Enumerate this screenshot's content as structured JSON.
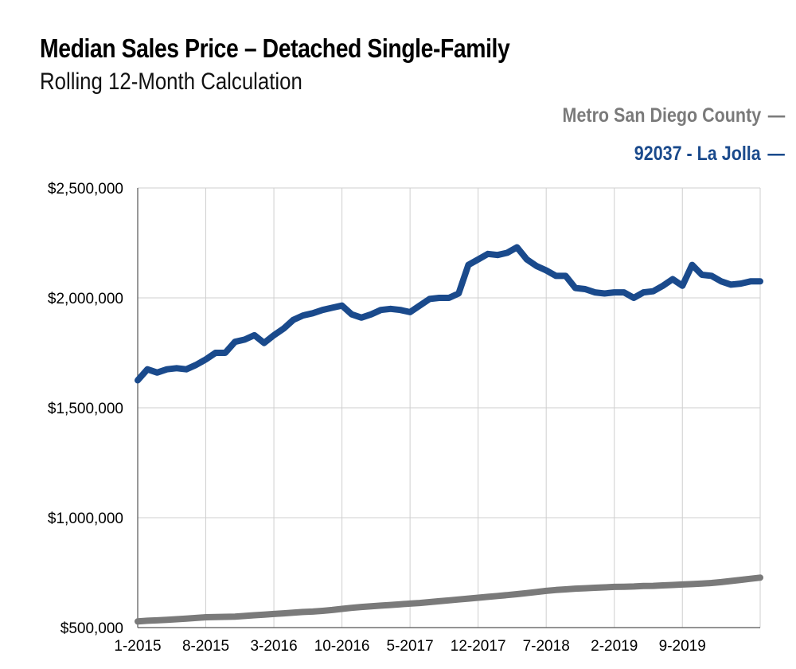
{
  "colors": {
    "metro": "#7a7a7a",
    "la_jolla": "#1a4a8c",
    "grid": "#cfcfcf"
  },
  "chart_data": {
    "type": "line",
    "title": "Median Sales Price – Detached Single-Family",
    "subtitle": "Rolling 12-Month Calculation",
    "legend_placement": "top-right",
    "grid": true,
    "ylim": [
      500000,
      2500000
    ],
    "y_ticks": [
      "$500,000",
      "$1,000,000",
      "$1,500,000",
      "$2,000,000",
      "$2,500,000"
    ],
    "y_tick_values": [
      500000,
      1000000,
      1500000,
      2000000,
      2500000
    ],
    "x_ticks": [
      "1-2015",
      "8-2015",
      "3-2016",
      "10-2016",
      "5-2017",
      "12-2017",
      "7-2018",
      "2-2019",
      "9-2019"
    ],
    "x_tick_index": [
      0,
      7,
      14,
      21,
      28,
      35,
      42,
      49,
      56
    ],
    "series": [
      {
        "name": "Metro San Diego County",
        "legend_mark": "—",
        "color": "#7a7a7a",
        "values": [
          528000,
          531000,
          533000,
          535000,
          538000,
          541000,
          544000,
          547000,
          548000,
          549000,
          550000,
          553000,
          556000,
          559000,
          562000,
          565000,
          568000,
          571000,
          573000,
          576000,
          580000,
          585000,
          590000,
          594000,
          597000,
          600000,
          603000,
          606000,
          609000,
          612000,
          616000,
          620000,
          624000,
          628000,
          632000,
          636000,
          640000,
          644000,
          648000,
          652000,
          657000,
          662000,
          667000,
          671000,
          674000,
          677000,
          679000,
          681000,
          683000,
          685000,
          686000,
          687000,
          689000,
          690000,
          692000,
          694000,
          696000,
          698000,
          700000,
          703000,
          707000,
          712000,
          717000,
          722000,
          727000
        ]
      },
      {
        "name": "92037 - La Jolla",
        "legend_mark": "—",
        "color": "#1a4a8c",
        "values": [
          1625000,
          1675000,
          1660000,
          1675000,
          1680000,
          1675000,
          1695000,
          1720000,
          1750000,
          1750000,
          1800000,
          1810000,
          1830000,
          1795000,
          1830000,
          1860000,
          1900000,
          1920000,
          1930000,
          1945000,
          1955000,
          1965000,
          1925000,
          1910000,
          1925000,
          1945000,
          1950000,
          1945000,
          1935000,
          1965000,
          1995000,
          2000000,
          2000000,
          2020000,
          2150000,
          2175000,
          2200000,
          2195000,
          2205000,
          2230000,
          2175000,
          2145000,
          2125000,
          2100000,
          2100000,
          2045000,
          2040000,
          2025000,
          2020000,
          2025000,
          2025000,
          2000000,
          2025000,
          2030000,
          2055000,
          2085000,
          2055000,
          2150000,
          2105000,
          2100000,
          2075000,
          2060000,
          2065000,
          2075000,
          2075000
        ]
      }
    ]
  }
}
